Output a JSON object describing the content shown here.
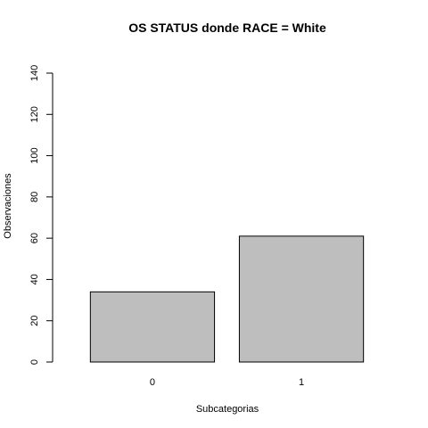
{
  "chart_data": {
    "type": "bar",
    "title": "OS STATUS donde RACE = White",
    "xlabel": "Subcategorias",
    "ylabel": "Observaciones",
    "categories": [
      "0",
      "1"
    ],
    "values": [
      34,
      61
    ],
    "ylim": [
      0,
      140
    ],
    "yticks": [
      0,
      20,
      40,
      60,
      80,
      100,
      120,
      140
    ],
    "bar_color": "#bebebe",
    "grid": false,
    "legend": "none"
  }
}
